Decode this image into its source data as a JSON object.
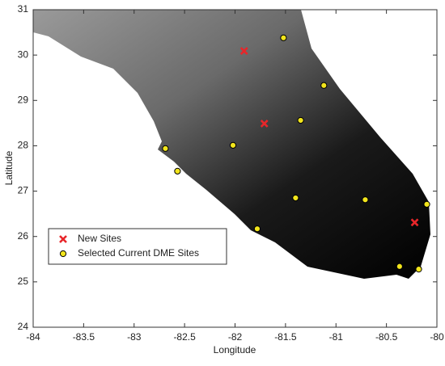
{
  "chart_data": {
    "type": "scatter",
    "x_label": "Longitude",
    "y_label": "Latitude",
    "xlim": [
      -84,
      -80
    ],
    "ylim": [
      24,
      31
    ],
    "xticks": [
      -84,
      -83.5,
      -83,
      -82.5,
      -82,
      -81.5,
      -81,
      -80.5,
      -80
    ],
    "yticks": [
      24,
      25,
      26,
      27,
      28,
      29,
      30,
      31
    ],
    "legend": "lower left",
    "series": [
      {
        "name": "New Sites",
        "color": "#e8262a",
        "marker": "x",
        "x": [
          -81.91,
          -81.71,
          -80.22
        ],
        "values": [
          30.09,
          28.49,
          26.31
        ]
      },
      {
        "name": "Selected Current DME Sites",
        "color": "#f2e51c",
        "marker": "o",
        "x": [
          -81.52,
          -81.12,
          -81.35,
          -82.02,
          -82.69,
          -82.57,
          -81.4,
          -80.71,
          -80.1,
          -81.78,
          -80.37,
          -80.18
        ],
        "values": [
          30.38,
          29.33,
          28.56,
          28.01,
          27.94,
          27.44,
          26.85,
          26.81,
          26.71,
          26.17,
          25.34,
          25.28
        ]
      }
    ]
  }
}
